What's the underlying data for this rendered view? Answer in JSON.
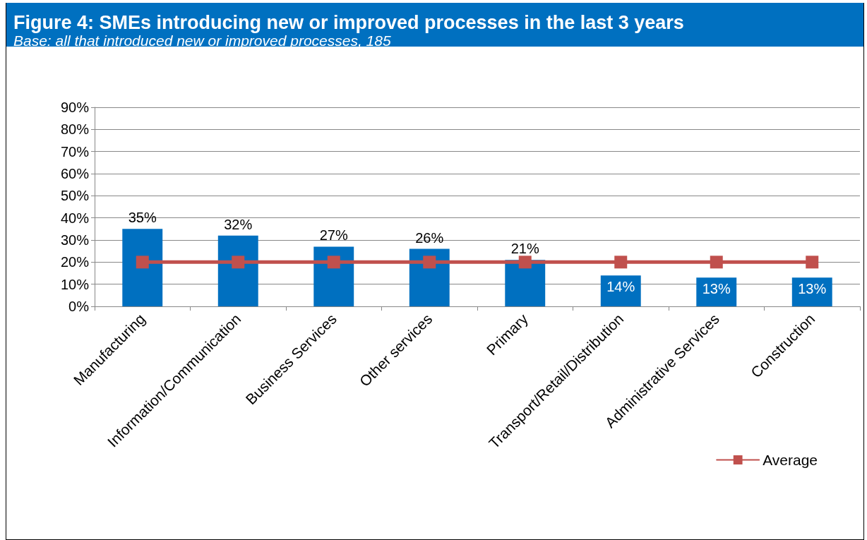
{
  "chart_data": {
    "type": "bar",
    "title": "Figure 4: SMEs introducing new or improved processes in the last 3 years",
    "subtitle": "Base: all that introduced new or improved processes, 185",
    "categories": [
      "Manufacturing",
      "Information/Communication",
      "Business Services",
      "Other services",
      "Primary",
      "Transport/Retail/Distribution",
      "Administrative Services",
      "Construction"
    ],
    "series": [
      {
        "color": "#0070c0",
        "values": [
          35,
          32,
          27,
          26,
          21,
          14,
          13,
          13
        ],
        "value_labels": [
          "35%",
          "32%",
          "27%",
          "26%",
          "21%",
          "14%",
          "13%",
          "13%"
        ]
      },
      {
        "name": "Average",
        "type": "line",
        "color": "#c0504d",
        "values": [
          20,
          20,
          20,
          20,
          20,
          20,
          20,
          20
        ]
      }
    ],
    "ylim": [
      0,
      90
    ],
    "yticks": [
      {
        "value": 0,
        "label": "0%"
      },
      {
        "value": 10,
        "label": "10%"
      },
      {
        "value": 20,
        "label": "20%"
      },
      {
        "value": 30,
        "label": "30%"
      },
      {
        "value": 40,
        "label": "40%"
      },
      {
        "value": 50,
        "label": "50%"
      },
      {
        "value": 60,
        "label": "60%"
      },
      {
        "value": 70,
        "label": "70%"
      },
      {
        "value": 80,
        "label": "80%"
      },
      {
        "value": 90,
        "label": "90%"
      }
    ],
    "grid": "y",
    "legend": "bottom right",
    "marker": "square",
    "line_style": "solid"
  }
}
